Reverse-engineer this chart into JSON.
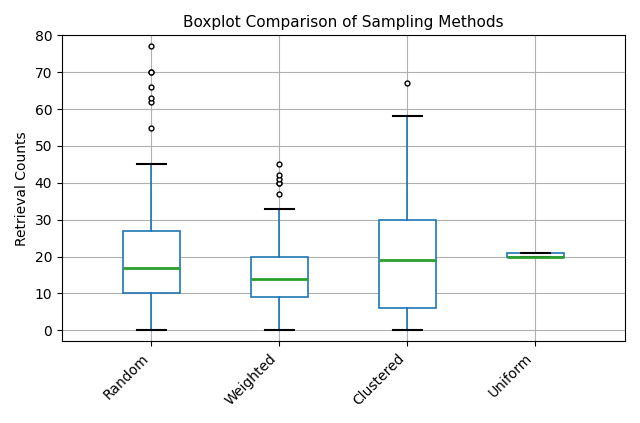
{
  "title": "Boxplot Comparison of Sampling Methods",
  "ylabel": "Retrieval Counts",
  "categories": [
    "Random",
    "Weighted",
    "Clustered",
    "Uniform"
  ],
  "ylim": [
    -3,
    80
  ],
  "yticks": [
    0,
    10,
    20,
    30,
    40,
    50,
    60,
    70,
    80
  ],
  "boxes": [
    {
      "label": "Random",
      "q1": 10,
      "median": 17,
      "q3": 27,
      "whislo": 0,
      "whishi": 45,
      "fliers": [
        55,
        62,
        63,
        66,
        70,
        70,
        77
      ]
    },
    {
      "label": "Weighted",
      "q1": 9,
      "median": 14,
      "q3": 20,
      "whislo": 0,
      "whishi": 33,
      "fliers": [
        37,
        40,
        40,
        41,
        42,
        45
      ]
    },
    {
      "label": "Clustered",
      "q1": 6,
      "median": 19,
      "q3": 30,
      "whislo": 0,
      "whishi": 58,
      "fliers": [
        67
      ]
    },
    {
      "label": "Uniform",
      "q1": 20,
      "median": 20,
      "q3": 21,
      "whislo": 20,
      "whishi": 21,
      "fliers": []
    }
  ],
  "box_color": "#1f77b4",
  "median_color": "#2ca02c",
  "cap_color": "#000000",
  "whisker_color": "#1f77b4",
  "flier_color": "#000000",
  "background_color": "#ffffff",
  "grid_color": "#b0b0b0",
  "title_fontsize": 11,
  "label_fontsize": 10,
  "tick_fontsize": 10,
  "box_width": 0.45,
  "xlim": [
    0.3,
    4.7
  ]
}
